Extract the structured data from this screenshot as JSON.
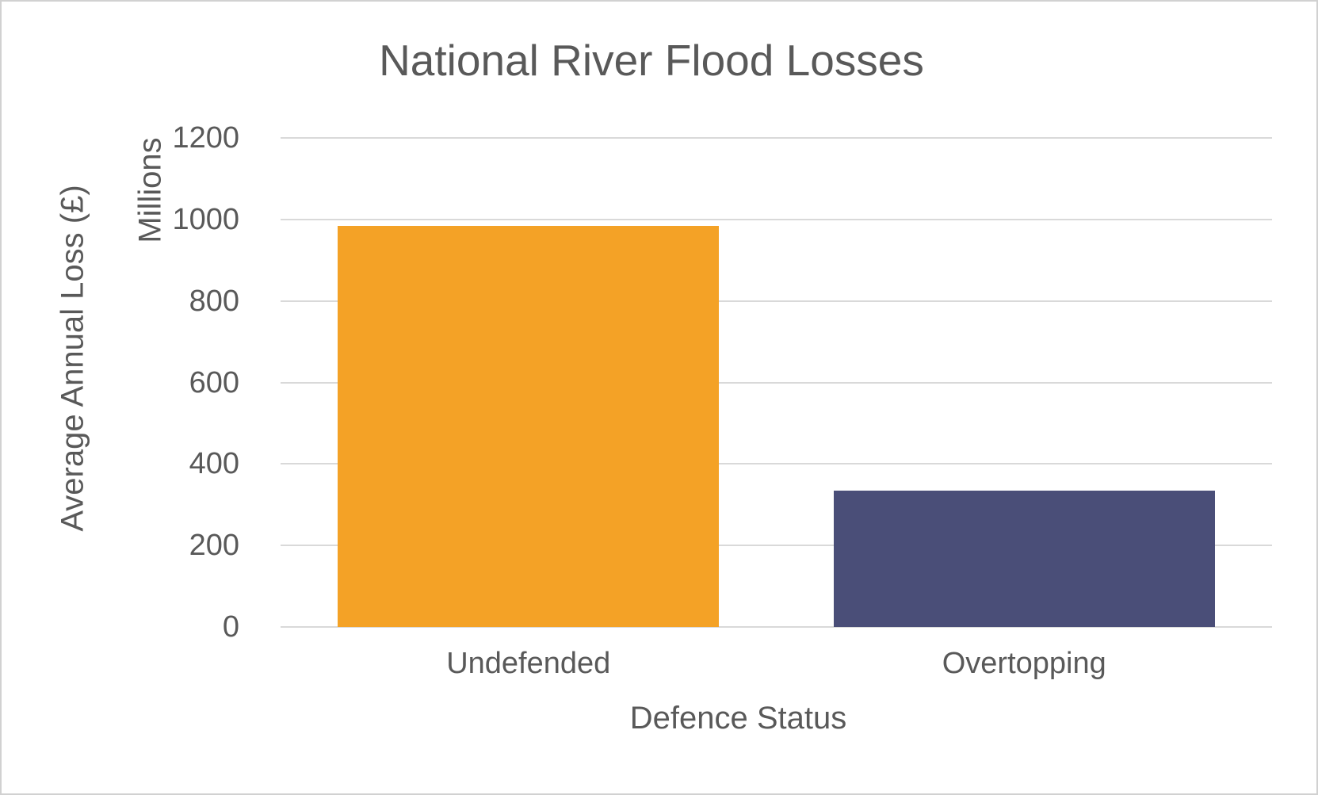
{
  "chart_data": {
    "type": "bar",
    "title": "National River Flood Losses",
    "categories": [
      "Undefended",
      "Overtopping"
    ],
    "values": [
      985,
      335
    ],
    "bar_colors": [
      "#F4A226",
      "#4A4E78"
    ],
    "xlabel": "Defence Status",
    "ylabel": "Average Annual Loss (£)",
    "display_unit_label": "Millions",
    "ylim": [
      0,
      1200
    ],
    "yticks": [
      0,
      200,
      400,
      600,
      800,
      1000,
      1200
    ],
    "grid": true,
    "legend_position": "none",
    "text_color": "#595959",
    "gridline_color": "#D9D9D9",
    "frame_border_color": "#D1D1D1",
    "background_color": "#FFFFFF"
  }
}
